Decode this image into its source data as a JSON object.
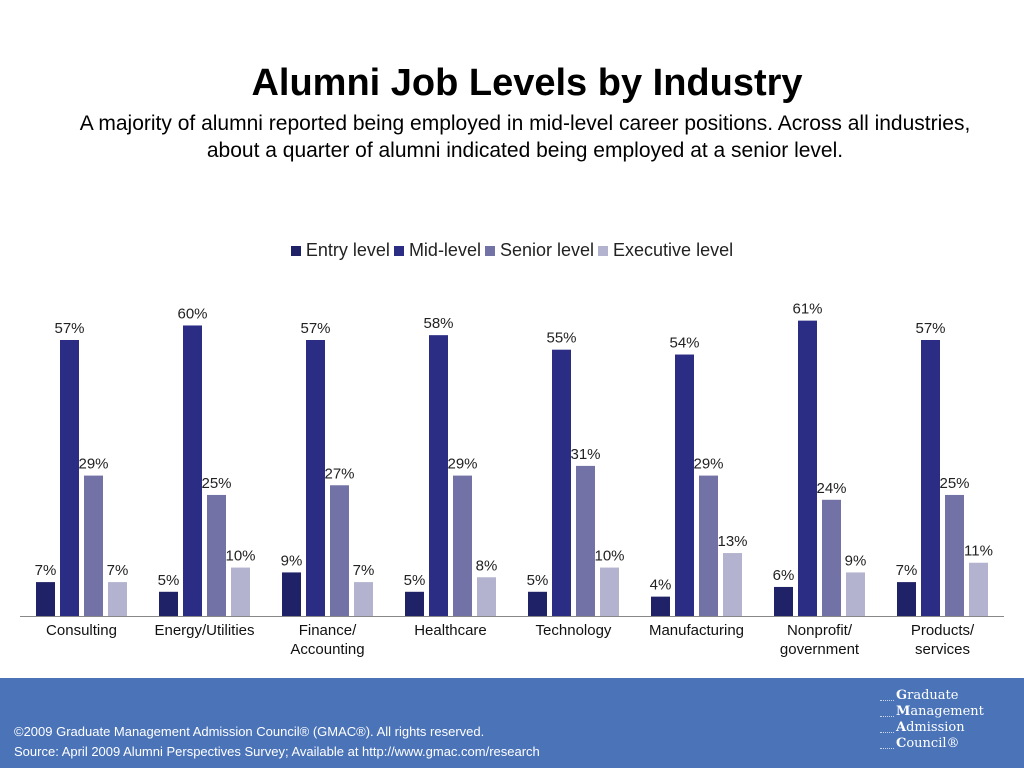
{
  "page": {
    "title": "Alumni Job Levels by Industry",
    "subtitle": "A majority of alumni reported being employed in mid-level career positions. Across all industries, about a quarter of alumni indicated being employed at a senior level."
  },
  "chart_data": {
    "type": "bar",
    "categories": [
      [
        "Consulting"
      ],
      [
        "Energy/Utilities"
      ],
      [
        "Finance/",
        "Accounting"
      ],
      [
        "Healthcare"
      ],
      [
        "Technology"
      ],
      [
        "Manufacturing"
      ],
      [
        "Nonprofit/",
        "government"
      ],
      [
        "Products/",
        "services"
      ]
    ],
    "series": [
      {
        "name": "Entry level",
        "color": "#1f2266",
        "values": [
          7,
          5,
          9,
          5,
          5,
          4,
          6,
          7
        ]
      },
      {
        "name": "Mid-level",
        "color": "#2b2d85",
        "values": [
          57,
          60,
          57,
          58,
          55,
          54,
          61,
          57
        ]
      },
      {
        "name": "Senior level",
        "color": "#7372a6",
        "values": [
          29,
          25,
          27,
          29,
          31,
          29,
          24,
          25
        ]
      },
      {
        "name": "Executive level",
        "color": "#b3b3cf",
        "values": [
          7,
          10,
          7,
          8,
          10,
          13,
          9,
          11
        ]
      }
    ],
    "value_suffix": "%",
    "ylim": [
      0,
      62
    ],
    "legend_position": "top",
    "grid": false
  },
  "footer": {
    "copyright": "©2009 Graduate Management Admission Council® (GMAC®). All rights reserved.",
    "source": "Source: April 2009 Alumni Perspectives Survey; Available at http://www.gmac.com/research",
    "logo_lines": [
      {
        "cap": "G",
        "rest": "raduate"
      },
      {
        "cap": "M",
        "rest": "anagement"
      },
      {
        "cap": "A",
        "rest": "dmission"
      },
      {
        "cap": "C",
        "rest": "ouncil®"
      }
    ],
    "bg_color": "#4a73b8"
  }
}
